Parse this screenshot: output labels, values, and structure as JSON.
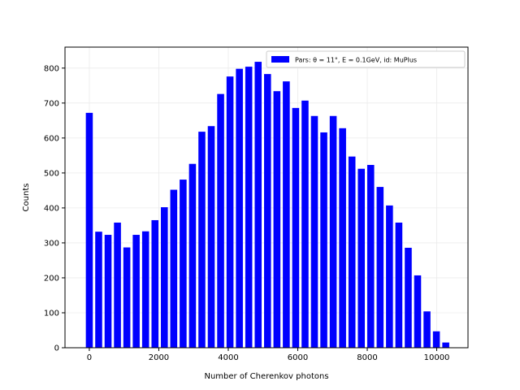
{
  "chart_data": {
    "type": "bar",
    "title": "",
    "xlabel": "Number of Cherenkov photons",
    "ylabel": "Counts",
    "xlim": [
      -700,
      10900
    ],
    "ylim": [
      0,
      860
    ],
    "xticks": [
      0,
      2000,
      4000,
      6000,
      8000,
      10000
    ],
    "yticks": [
      0,
      100,
      200,
      300,
      400,
      500,
      600,
      700,
      800
    ],
    "grid": true,
    "bar_width": 200,
    "legend": {
      "placement": "top-right",
      "label": "Pars: θ = 11°, E = 0.1GeV, id: MuPlus"
    },
    "colors": {
      "bar": "#0000ff",
      "grid": "#ebebeb",
      "axis": "#000000"
    },
    "series": [
      {
        "name": "Pars: θ = 11°, E = 0.1GeV, id: MuPlus",
        "x": [
          0,
          270,
          540,
          810,
          1080,
          1350,
          1620,
          1890,
          2160,
          2430,
          2700,
          2970,
          3240,
          3510,
          3780,
          4050,
          4320,
          4590,
          4860,
          5130,
          5400,
          5670,
          5940,
          6210,
          6480,
          6750,
          7020,
          7290,
          7560,
          7830,
          8100,
          8370,
          8640,
          8910,
          9180,
          9450,
          9720,
          9990,
          10260
        ],
        "values": [
          672,
          332,
          323,
          358,
          287,
          323,
          333,
          365,
          402,
          452,
          481,
          526,
          618,
          634,
          726,
          776,
          798,
          804,
          818,
          783,
          734,
          762,
          686,
          707,
          663,
          616,
          663,
          628,
          547,
          512,
          523,
          460,
          407,
          358,
          286,
          207,
          104,
          47,
          15
        ]
      }
    ]
  }
}
